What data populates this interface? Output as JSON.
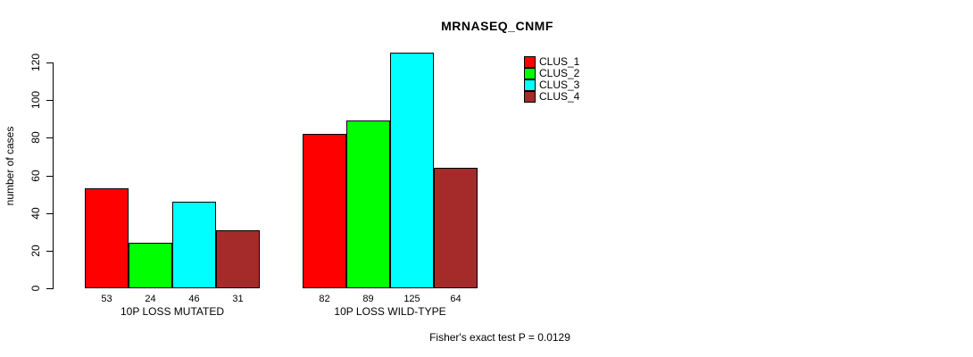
{
  "title": "MRNASEQ_CNMF",
  "footnote": "Fisher's exact test P = 0.0129",
  "chart_data": {
    "type": "bar",
    "title": "MRNASEQ_CNMF",
    "xlabel": "",
    "ylabel": "number of cases",
    "yticks": [
      0,
      20,
      40,
      60,
      80,
      100,
      120
    ],
    "ylim": [
      0,
      125
    ],
    "grid": false,
    "legend_position": "top-right",
    "bar_value_labels": true,
    "categories": [
      "10P LOSS MUTATED",
      "10P LOSS WILD-TYPE"
    ],
    "series": [
      {
        "name": "CLUS_1",
        "color": "#FF0000",
        "values": [
          53,
          82
        ]
      },
      {
        "name": "CLUS_2",
        "color": "#00FF00",
        "values": [
          24,
          89
        ]
      },
      {
        "name": "CLUS_3",
        "color": "#00FFFF",
        "values": [
          46,
          125
        ]
      },
      {
        "name": "CLUS_4",
        "color": "#A52A2A",
        "values": [
          31,
          64
        ]
      }
    ],
    "footnote": "Fisher's exact test P = 0.0129"
  }
}
